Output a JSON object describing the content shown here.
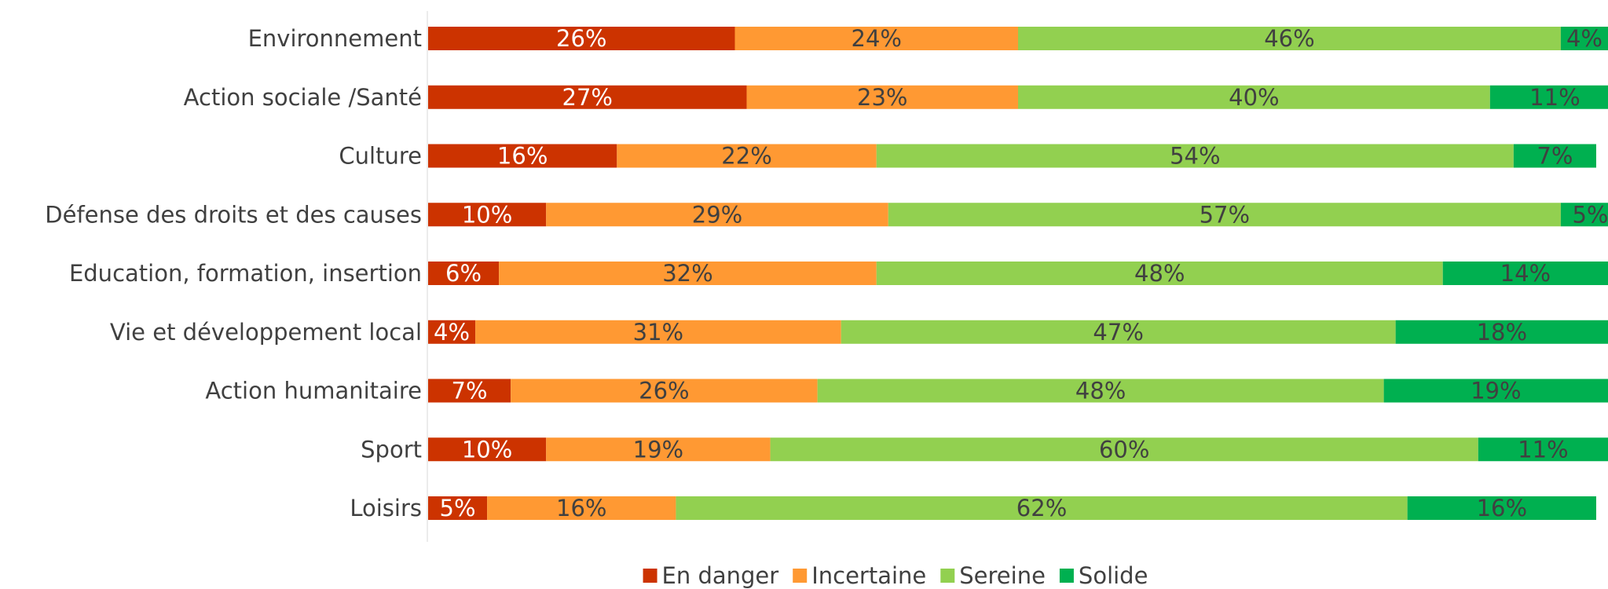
{
  "chart_data": {
    "type": "bar",
    "orientation": "horizontal",
    "stacked": true,
    "percent": true,
    "categories": [
      "Environnement",
      "Action sociale /Santé",
      "Culture",
      "Défense des droits et des causes",
      "Education, formation, insertion",
      "Vie et développement local",
      "Action humanitaire",
      "Sport",
      "Loisirs"
    ],
    "series": [
      {
        "name": "En danger",
        "color": "#cc3300",
        "label_color": "#ffffff",
        "values": [
          26,
          27,
          16,
          10,
          6,
          4,
          7,
          10,
          5
        ]
      },
      {
        "name": "Incertaine",
        "color": "#ff9933",
        "label_color": "#404040",
        "values": [
          24,
          23,
          22,
          29,
          32,
          31,
          26,
          19,
          16
        ]
      },
      {
        "name": "Sereine",
        "color": "#92d050",
        "label_color": "#404040",
        "values": [
          46,
          40,
          54,
          57,
          48,
          47,
          48,
          60,
          62
        ]
      },
      {
        "name": "Solide",
        "color": "#00b050",
        "label_color": "#404040",
        "values": [
          4,
          11,
          7,
          5,
          14,
          18,
          19,
          11,
          16
        ]
      }
    ],
    "value_suffix": "%",
    "xlim": [
      0,
      100
    ],
    "grid": false,
    "legend_position": "bottom"
  }
}
